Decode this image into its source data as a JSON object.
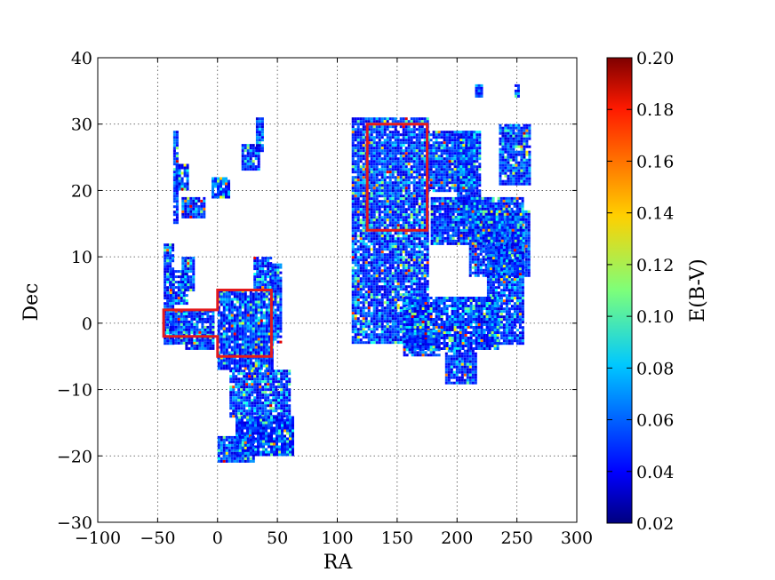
{
  "chart_data": {
    "type": "scatter",
    "xlabel": "RA",
    "ylabel": "Dec",
    "xlim": [
      -100,
      300
    ],
    "ylim": [
      -30,
      40
    ],
    "xticks": [
      -100,
      -50,
      0,
      50,
      100,
      150,
      200,
      250,
      300
    ],
    "yticks": [
      -30,
      -20,
      -10,
      0,
      10,
      20,
      30,
      40
    ],
    "xtick_labels": [
      "−100",
      "−50",
      "0",
      "50",
      "100",
      "150",
      "200",
      "250",
      "300"
    ],
    "ytick_labels": [
      "−30",
      "−20",
      "−10",
      "0",
      "10",
      "20",
      "30",
      "40"
    ],
    "grid": true,
    "colorbar": {
      "label": "E(B-V)",
      "range": [
        0.02,
        0.2
      ],
      "ticks": [
        0.02,
        0.04,
        0.06,
        0.08,
        0.1,
        0.12,
        0.14,
        0.16,
        0.18,
        0.2
      ],
      "tick_labels": [
        "0.02",
        "0.04",
        "0.06",
        "0.08",
        "0.10",
        "0.12",
        "0.14",
        "0.16",
        "0.18",
        "0.20"
      ],
      "colormap": "jet"
    },
    "regions": [
      {
        "name": "left-region",
        "color": "#e41a1c",
        "polygon": [
          [
            -45,
            2
          ],
          [
            0,
            2
          ],
          [
            0,
            5
          ],
          [
            45,
            5
          ],
          [
            45,
            -5
          ],
          [
            0,
            -5
          ],
          [
            0,
            -2
          ],
          [
            -45,
            -2
          ]
        ]
      },
      {
        "name": "right-region",
        "color": "#e41a1c",
        "polygon": [
          [
            125,
            14
          ],
          [
            175,
            14
          ],
          [
            175,
            30
          ],
          [
            125,
            30
          ]
        ]
      }
    ],
    "coverage_patches": [
      {
        "ra": [
          -45,
          -37
        ],
        "dec": [
          -3,
          12
        ]
      },
      {
        "ra": [
          -40,
          -27
        ],
        "dec": [
          -3,
          2
        ]
      },
      {
        "ra": [
          -27,
          -3
        ],
        "dec": [
          -4,
          2
        ]
      },
      {
        "ra": [
          0,
          45
        ],
        "dec": [
          -7,
          5
        ]
      },
      {
        "ra": [
          -40,
          -25
        ],
        "dec": [
          3,
          8
        ]
      },
      {
        "ra": [
          -30,
          -20
        ],
        "dec": [
          5,
          10
        ]
      },
      {
        "ra": [
          -30,
          -10
        ],
        "dec": [
          16,
          19
        ]
      },
      {
        "ra": [
          -37,
          -33
        ],
        "dec": [
          15,
          29
        ]
      },
      {
        "ra": [
          -35,
          -25
        ],
        "dec": [
          20,
          24
        ]
      },
      {
        "ra": [
          -5,
          10
        ],
        "dec": [
          19,
          22
        ]
      },
      {
        "ra": [
          20,
          35
        ],
        "dec": [
          23,
          27
        ]
      },
      {
        "ra": [
          32,
          38
        ],
        "dec": [
          26,
          31
        ]
      },
      {
        "ra": [
          30,
          45
        ],
        "dec": [
          5,
          10
        ]
      },
      {
        "ra": [
          45,
          52
        ],
        "dec": [
          -3,
          9
        ]
      },
      {
        "ra": [
          10,
          60
        ],
        "dec": [
          -14,
          -7
        ]
      },
      {
        "ra": [
          15,
          62
        ],
        "dec": [
          -20,
          -14
        ]
      },
      {
        "ra": [
          0,
          30
        ],
        "dec": [
          -21,
          -17
        ]
      },
      {
        "ra": [
          112,
          175
        ],
        "dec": [
          -3,
          31
        ]
      },
      {
        "ra": [
          175,
          215
        ],
        "dec": [
          20,
          29
        ]
      },
      {
        "ra": [
          200,
          220
        ],
        "dec": [
          15,
          29
        ]
      },
      {
        "ra": [
          178,
          255
        ],
        "dec": [
          12,
          19
        ]
      },
      {
        "ra": [
          210,
          260
        ],
        "dec": [
          7,
          17
        ]
      },
      {
        "ra": [
          225,
          255
        ],
        "dec": [
          -3,
          12
        ]
      },
      {
        "ra": [
          235,
          260
        ],
        "dec": [
          21,
          30
        ]
      },
      {
        "ra": [
          155,
          235
        ],
        "dec": [
          -4,
          4
        ]
      },
      {
        "ra": [
          190,
          215
        ],
        "dec": [
          -9,
          -4
        ]
      },
      {
        "ra": [
          155,
          185
        ],
        "dec": [
          -5,
          -1
        ]
      },
      {
        "ra": [
          215,
          220
        ],
        "dec": [
          34,
          36
        ]
      },
      {
        "ra": [
          248,
          252
        ],
        "dec": [
          34,
          36
        ]
      }
    ]
  }
}
